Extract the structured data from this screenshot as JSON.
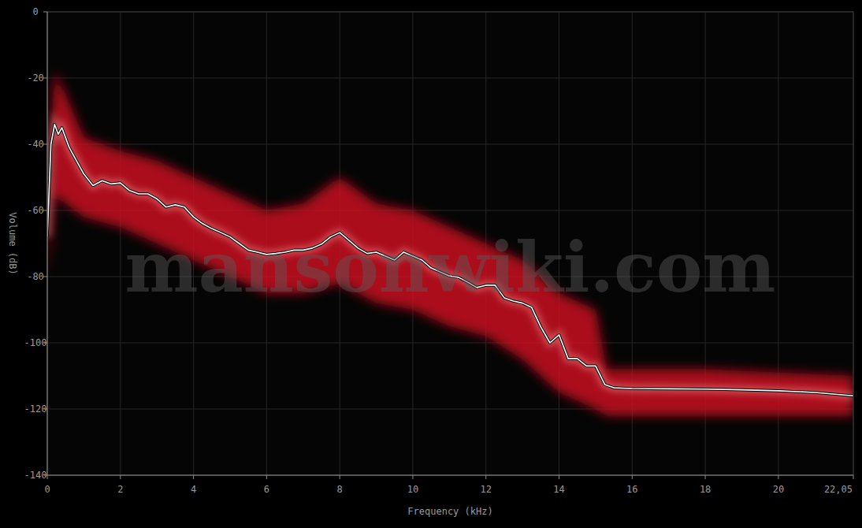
{
  "chart_data": {
    "type": "line",
    "x_label": "Frequency (kHz)",
    "y_label": "Volume (dB)",
    "watermark": "mansonwiki.com",
    "x": [
      0,
      0.1,
      0.2,
      0.3,
      0.4,
      0.5,
      0.6,
      0.75,
      1,
      1.25,
      1.5,
      1.75,
      2,
      2.25,
      2.5,
      2.75,
      3,
      3.25,
      3.5,
      3.75,
      4,
      4.25,
      4.5,
      4.75,
      5,
      5.25,
      5.5,
      5.75,
      6,
      6.25,
      6.5,
      6.75,
      7,
      7.25,
      7.5,
      7.75,
      8,
      8.25,
      8.5,
      8.75,
      9,
      9.25,
      9.5,
      9.75,
      10,
      10.25,
      10.5,
      10.75,
      11,
      11.25,
      11.5,
      11.75,
      12,
      12.25,
      12.5,
      12.75,
      13,
      13.25,
      13.5,
      13.75,
      14,
      14.25,
      14.5,
      14.75,
      15,
      15.25,
      15.5,
      16,
      17,
      18,
      19,
      20,
      21,
      22.05
    ],
    "series": [
      {
        "color": "#ffffff",
        "line_style": "solid",
        "values": [
          -68,
          -40,
          -34,
          -37,
          -35,
          -38,
          -41,
          -44,
          -49,
          -52.5,
          -51,
          -52,
          -51.7,
          -54,
          -55,
          -55,
          -56.5,
          -59,
          -58.3,
          -59,
          -62,
          -64,
          -65.5,
          -66.7,
          -68,
          -70,
          -72,
          -72.6,
          -73.3,
          -73,
          -72.6,
          -72,
          -72,
          -71.4,
          -70.2,
          -68,
          -66.7,
          -69,
          -71.4,
          -73,
          -72.6,
          -73.8,
          -75,
          -72.6,
          -73.8,
          -75,
          -77.4,
          -78.6,
          -79.8,
          -80.2,
          -81.7,
          -83.3,
          -82.6,
          -82.6,
          -86.4,
          -87.4,
          -88,
          -89.3,
          -95.2,
          -100,
          -97.6,
          -104.8,
          -104.8,
          -107,
          -107,
          -112.6,
          -113.6,
          -113.8,
          -113.9,
          -114,
          -114.2,
          -114.5,
          -115,
          -116
        ]
      },
      {
        "type": "band",
        "color": "#c8101c",
        "x": [
          0,
          0.2,
          0.5,
          1,
          2,
          3,
          4,
          5,
          6,
          7,
          8,
          9,
          10,
          11,
          12,
          13,
          14,
          15,
          15.3,
          16,
          18,
          20,
          22.05
        ],
        "values": [
          -60,
          -18,
          -25,
          -38,
          -42,
          -45,
          -50,
          -55,
          -60,
          -58,
          -50,
          -58,
          -60,
          -65,
          -70,
          -75,
          -85,
          -90,
          -108,
          -108,
          -108,
          -109,
          -110
        ],
        "lower": [
          -80,
          -55,
          -58,
          -62,
          -65,
          -70,
          -75,
          -80,
          -85,
          -85,
          -82,
          -88,
          -90,
          -95,
          -98,
          -105,
          -115,
          -120,
          -122,
          -122,
          -122,
          -122,
          -122
        ]
      }
    ],
    "xlim": [
      0,
      22.05
    ],
    "ylim": [
      -140,
      0
    ],
    "xticks": [
      0,
      2,
      4,
      6,
      8,
      10,
      12,
      14,
      16,
      18,
      20,
      {
        "value": 22.05,
        "label": "22,05"
      }
    ],
    "yticks": [
      0,
      -20,
      -40,
      -60,
      -80,
      -100,
      -120,
      -140
    ],
    "grid": true
  }
}
